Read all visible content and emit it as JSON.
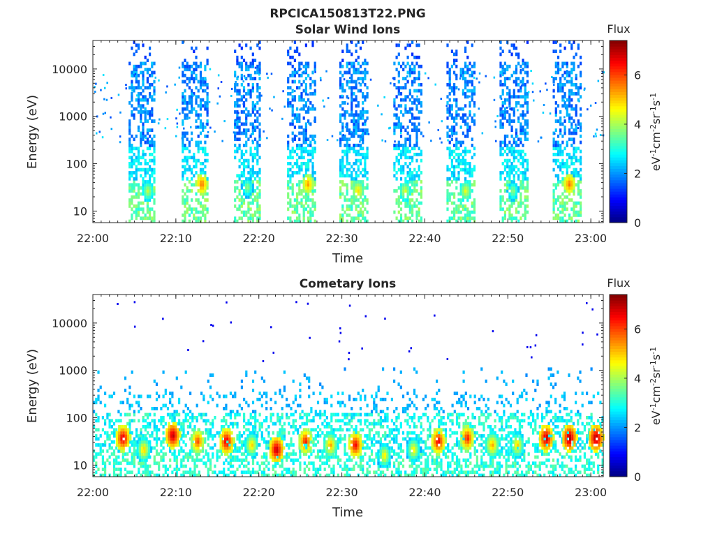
{
  "figure": {
    "title": "RPCICA150813T22.PNG"
  },
  "chart_data": [
    {
      "type": "heatmap",
      "title": "Solar Wind Ions",
      "xlabel": "Time",
      "ylabel": "Energy (eV)",
      "yscale": "log",
      "ylim": [
        5.7,
        40000
      ],
      "xlim": [
        "22:00",
        "23:01.5"
      ],
      "xticks": [
        "22:00",
        "22:10",
        "22:20",
        "22:30",
        "22:40",
        "22:50",
        "23:00"
      ],
      "yticks": [
        "10",
        "100",
        "1000",
        "10000"
      ],
      "colorbar": {
        "title": "Flux",
        "label": "eV-1cm-2sr-1s-1",
        "ticks": [
          "0",
          "2",
          "4",
          "6"
        ],
        "range": [
          0,
          7.4
        ],
        "colormap": "jet"
      },
      "grid": false,
      "bursts": [
        {
          "t_start": "22:04.3",
          "t_end": "22:07.4",
          "peak_time": "22:06.5",
          "peak_energy_eV": 25,
          "peak_flux": 4.3
        },
        {
          "t_start": "22:10.7",
          "t_end": "22:13.8",
          "peak_time": "22:13.0",
          "peak_energy_eV": 35,
          "peak_flux": 5.8
        },
        {
          "t_start": "22:17.0",
          "t_end": "22:20.0",
          "peak_time": "22:18.5",
          "peak_energy_eV": 30,
          "peak_flux": 4.0
        },
        {
          "t_start": "22:23.4",
          "t_end": "22:26.8",
          "peak_time": "22:25.8",
          "peak_energy_eV": 35,
          "peak_flux": 5.5
        },
        {
          "t_start": "22:29.7",
          "t_end": "22:33.0",
          "peak_time": "22:31.8",
          "peak_energy_eV": 25,
          "peak_flux": 5.0
        },
        {
          "t_start": "22:36.2",
          "t_end": "22:39.6",
          "peak_time": "22:37.5",
          "peak_energy_eV": 25,
          "peak_flux": 4.5
        },
        {
          "t_start": "22:42.6",
          "t_end": "22:46.0",
          "peak_time": "22:44.8",
          "peak_energy_eV": 25,
          "peak_flux": 4.6
        },
        {
          "t_start": "22:49.0",
          "t_end": "22:52.4",
          "peak_time": "22:50.5",
          "peak_energy_eV": 25,
          "peak_flux": 4.0
        },
        {
          "t_start": "22:55.4",
          "t_end": "22:58.8",
          "peak_time": "22:57.3",
          "peak_energy_eV": 35,
          "peak_flux": 5.8
        }
      ]
    },
    {
      "type": "heatmap",
      "title": "Cometary Ions",
      "xlabel": "Time",
      "ylabel": "Energy (eV)",
      "yscale": "log",
      "ylim": [
        5.7,
        40000
      ],
      "xlim": [
        "22:00",
        "23:01.5"
      ],
      "xticks": [
        "22:00",
        "22:10",
        "22:20",
        "22:30",
        "22:40",
        "22:50",
        "23:00"
      ],
      "yticks": [
        "10",
        "100",
        "1000",
        "10000"
      ],
      "colorbar": {
        "title": "Flux",
        "label": "eV-1cm-2sr-1s-1",
        "ticks": [
          "0",
          "2",
          "4",
          "6"
        ],
        "range": [
          0,
          7.4
        ],
        "colormap": "jet"
      },
      "grid": false,
      "bursts": [
        {
          "time": "22:03.5",
          "peak_energy_eV": 35,
          "peak_flux": 7.0
        },
        {
          "time": "22:06.0",
          "peak_energy_eV": 20,
          "peak_flux": 5.2
        },
        {
          "time": "22:09.5",
          "peak_energy_eV": 40,
          "peak_flux": 7.2
        },
        {
          "time": "22:12.5",
          "peak_energy_eV": 30,
          "peak_flux": 6.2
        },
        {
          "time": "22:16.0",
          "peak_energy_eV": 30,
          "peak_flux": 7.0
        },
        {
          "time": "22:19.0",
          "peak_energy_eV": 25,
          "peak_flux": 5.2
        },
        {
          "time": "22:22.0",
          "peak_energy_eV": 20,
          "peak_flux": 7.2
        },
        {
          "time": "22:25.5",
          "peak_energy_eV": 30,
          "peak_flux": 6.5
        },
        {
          "time": "22:28.5",
          "peak_energy_eV": 25,
          "peak_flux": 5.5
        },
        {
          "time": "22:31.5",
          "peak_energy_eV": 25,
          "peak_flux": 6.8
        },
        {
          "time": "22:35.0",
          "peak_energy_eV": 15,
          "peak_flux": 5.0
        },
        {
          "time": "22:38.5",
          "peak_energy_eV": 20,
          "peak_flux": 5.0
        },
        {
          "time": "22:41.5",
          "peak_energy_eV": 30,
          "peak_flux": 6.8
        },
        {
          "time": "22:45.0",
          "peak_energy_eV": 35,
          "peak_flux": 6.5
        },
        {
          "time": "22:48.0",
          "peak_energy_eV": 25,
          "peak_flux": 5.5
        },
        {
          "time": "22:51.0",
          "peak_energy_eV": 25,
          "peak_flux": 5.2
        },
        {
          "time": "22:54.5",
          "peak_energy_eV": 35,
          "peak_flux": 7.2
        },
        {
          "time": "22:57.3",
          "peak_energy_eV": 35,
          "peak_flux": 7.4
        },
        {
          "time": "23:00.5",
          "peak_energy_eV": 35,
          "peak_flux": 7.4
        }
      ]
    }
  ]
}
